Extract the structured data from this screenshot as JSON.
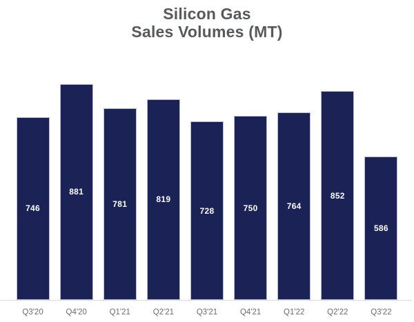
{
  "title": {
    "line1": "Silicon Gas",
    "line2": "Sales Volumes (MT)",
    "color": "#58595b"
  },
  "chart_data": {
    "type": "bar",
    "title": "Silicon Gas Sales Volumes (MT)",
    "categories": [
      "Q3'20",
      "Q4'20",
      "Q1'21",
      "Q2'21",
      "Q3'21",
      "Q4'21",
      "Q1'22",
      "Q2'22",
      "Q3'22"
    ],
    "values": [
      746,
      881,
      781,
      819,
      728,
      750,
      764,
      852,
      586
    ],
    "xlabel": "",
    "ylabel": "",
    "ylim": [
      0,
      900
    ],
    "grid": false,
    "legend": false,
    "value_labels_position": "inside-center",
    "bar_color": "#1b2255",
    "bar_border_color": "#b9bdd2",
    "value_label_color": "#ffffff",
    "axis_label_color": "#6a6b6e",
    "baseline_color": "#d9d9d9"
  }
}
